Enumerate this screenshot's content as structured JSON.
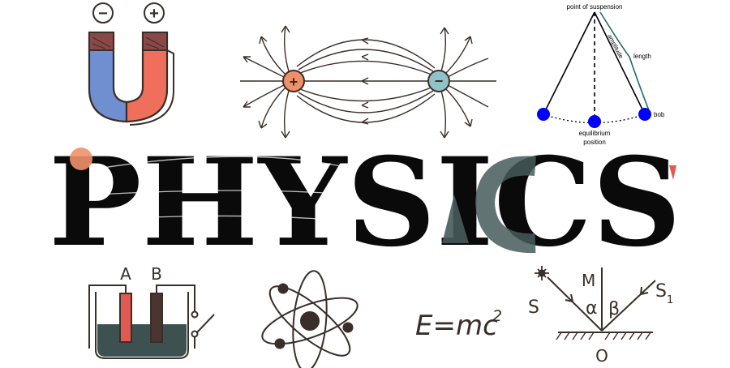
{
  "colors": {
    "ink": "#3a2e28",
    "magnet_blue": "#6f8fd0",
    "magnet_red": "#ef6e5c",
    "charge_pos": "#f0906a",
    "charge_neg": "#8fc3c9",
    "pendulum_bob": "#0000ff",
    "pendulum_length": "#1c6b6b",
    "title_main": "#0a0a0a",
    "title_accent": "#465a5a",
    "liquid": "#3d5250",
    "electrode_a": "#e05a52",
    "electrode_b": "#4a3530"
  },
  "magnet": {
    "minus_sign": "−",
    "plus_sign": "+"
  },
  "field": {
    "positive_label": "+",
    "negative_label": "−"
  },
  "pendulum": {
    "suspension_label": "point of suspension",
    "amplitude_label": "amplitude",
    "length_label": "length",
    "bob_label": "bob",
    "equilibrium_line1": "equilibrium",
    "equilibrium_line2": "position"
  },
  "title": {
    "text": "PHYSICS"
  },
  "cell": {
    "label_a": "A",
    "label_b": "B"
  },
  "formula": {
    "base": "E=mc",
    "exponent": "2"
  },
  "reflection": {
    "source_label": "S",
    "reflected_label": "S",
    "reflected_subscript": "1",
    "normal_label": "M",
    "angle_alpha": "α",
    "angle_beta": "β",
    "origin_label": "O"
  }
}
